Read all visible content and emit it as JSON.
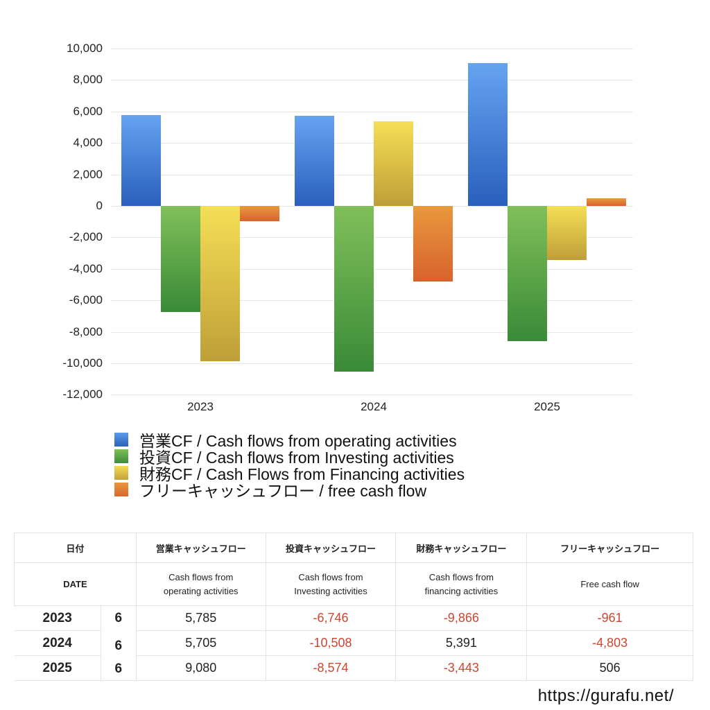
{
  "chart_data": {
    "type": "bar",
    "title": "",
    "xlabel": "",
    "ylabel": "",
    "categories": [
      "2023",
      "2024",
      "2025"
    ],
    "ylim": [
      -12000,
      10000
    ],
    "yticks": [
      "10,000",
      "8,000",
      "6,000",
      "4,000",
      "2,000",
      "0",
      "-2,000",
      "-4,000",
      "-6,000",
      "-8,000",
      "-10,000",
      "-12,000"
    ],
    "grid": true,
    "legend_position": "bottom",
    "series": [
      {
        "name": "営業CF / Cash flows from operating activities",
        "color": "#3f7fd9",
        "values": [
          5785,
          5705,
          9080
        ]
      },
      {
        "name": "投資CF / Cash flows from Investing activities",
        "color": "#5aa64a",
        "values": [
          -6746,
          -10508,
          -8574
        ]
      },
      {
        "name": "財務CF / Cash Flows from Financing activities",
        "color": "#e3c94a",
        "values": [
          -9866,
          5391,
          -3443
        ]
      },
      {
        "name": "フリーキャッシュフロー / free cash flow",
        "color": "#e07f35",
        "values": [
          -961,
          -4803,
          506
        ]
      }
    ]
  },
  "legend": [
    "営業CF / Cash flows from operating activities",
    "投資CF / Cash flows from Investing activities",
    "財務CF / Cash Flows from Financing activities",
    "フリーキャッシュフロー / free cash flow"
  ],
  "table": {
    "header_jp": [
      "日付",
      "営業キャッシュフロー",
      "投資キャッシュフロー",
      "財務キャッシュフロー",
      "フリーキャッシュフロー"
    ],
    "header_en": {
      "date": "DATE",
      "operating": [
        "Cash flows from",
        "operating activities"
      ],
      "investing": [
        "Cash flows from",
        "Investing activities"
      ],
      "financing": [
        "Cash flows from",
        "financing activities"
      ],
      "free": "Free cash flow"
    },
    "rows": [
      {
        "year": "2023",
        "month": "6",
        "operating": "5,785",
        "investing": "-6,746",
        "financing": "-9,866",
        "free": "-961"
      },
      {
        "year": "2024",
        "month": "6",
        "operating": "5,705",
        "investing": "-10,508",
        "financing": "5,391",
        "free": "-4,803"
      },
      {
        "year": "2025",
        "month": "6",
        "operating": "9,080",
        "investing": "-8,574",
        "financing": "-3,443",
        "free": "506"
      }
    ]
  },
  "footer": {
    "url": "https://gurafu.net/"
  }
}
